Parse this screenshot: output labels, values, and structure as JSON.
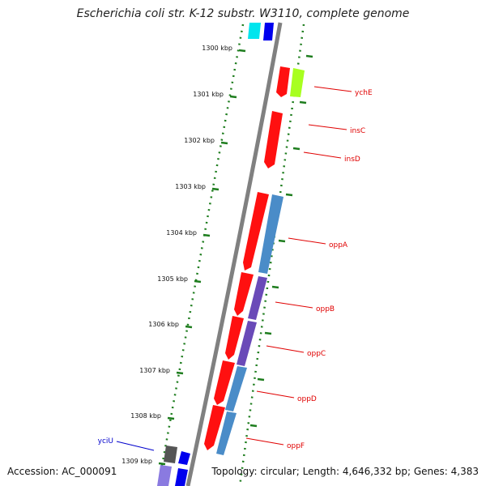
{
  "title": "Escherichia coli str. K-12 substr. W3110, complete genome",
  "footer": {
    "accession": "Accession: AC_000091",
    "summary": "Topology: circular; Length: 4,646,332 bp; Genes: 4,383"
  },
  "colors": {
    "backbone": "#808080",
    "tick": "#1e7d1e",
    "forward_cds": "#ff1010",
    "reverse_cds": "#4a8cc8",
    "label_red": "#e00000",
    "label_blue": "#0000cc"
  },
  "ticks": [
    {
      "label": "1300 kbp"
    },
    {
      "label": "1301 kbp"
    },
    {
      "label": "1302 kbp"
    },
    {
      "label": "1303 kbp"
    },
    {
      "label": "1304 kbp"
    },
    {
      "label": "1305 kbp"
    },
    {
      "label": "1306 kbp"
    },
    {
      "label": "1307 kbp"
    },
    {
      "label": "1308 kbp"
    },
    {
      "label": "1309 kbp"
    }
  ],
  "genes": [
    {
      "name": "ychE",
      "color": "red"
    },
    {
      "name": "insC",
      "color": "red"
    },
    {
      "name": "insD",
      "color": "red"
    },
    {
      "name": "oppA",
      "color": "red"
    },
    {
      "name": "oppB",
      "color": "red"
    },
    {
      "name": "oppC",
      "color": "red"
    },
    {
      "name": "oppD",
      "color": "red"
    },
    {
      "name": "oppF",
      "color": "red"
    },
    {
      "name": "yciU",
      "color": "blue"
    }
  ]
}
